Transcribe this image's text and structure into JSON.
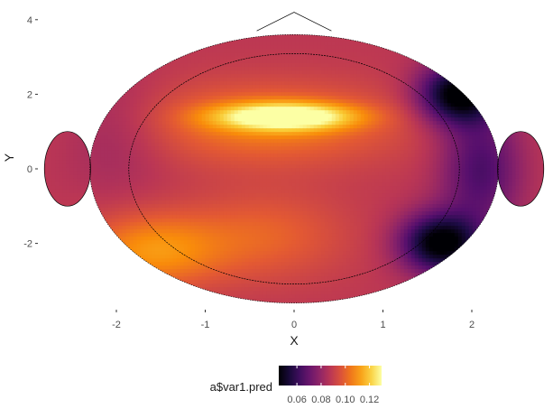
{
  "chart_data": {
    "type": "heatmap",
    "title": "",
    "xlabel": "X",
    "ylabel": "Y",
    "xlim": [
      -2.5,
      2.5
    ],
    "ylim": [
      -3.5,
      4.2
    ],
    "x_ticks": [
      -2,
      -1,
      0,
      1,
      2
    ],
    "y_ticks": [
      -2,
      0,
      2,
      4
    ],
    "grid": false,
    "colorscale": "inferno",
    "head_outline": {
      "center": [
        0,
        0
      ],
      "radius_x": 2.3,
      "radius_y": 3.6,
      "nose_tip": [
        0,
        4.2
      ],
      "ears": [
        -2.55,
        2.55
      ]
    },
    "field_extremes": [
      {
        "label": "maximum",
        "x": -0.1,
        "y": 1.4,
        "value": 0.13
      },
      {
        "label": "minimum",
        "x": 1.8,
        "y": 2.0,
        "value": 0.045
      },
      {
        "label": "minimum",
        "x": 1.6,
        "y": -2.0,
        "value": 0.045
      },
      {
        "label": "local high",
        "x": -1.6,
        "y": -2.2,
        "value": 0.11
      }
    ],
    "legend": {
      "title": "a$var1.pred",
      "position": "bottom",
      "range": [
        0.045,
        0.13
      ],
      "ticks": [
        0.06,
        0.08,
        0.1,
        0.12
      ],
      "tick_labels": [
        "0.06",
        "0.08",
        "0.10",
        "0.12"
      ]
    }
  }
}
